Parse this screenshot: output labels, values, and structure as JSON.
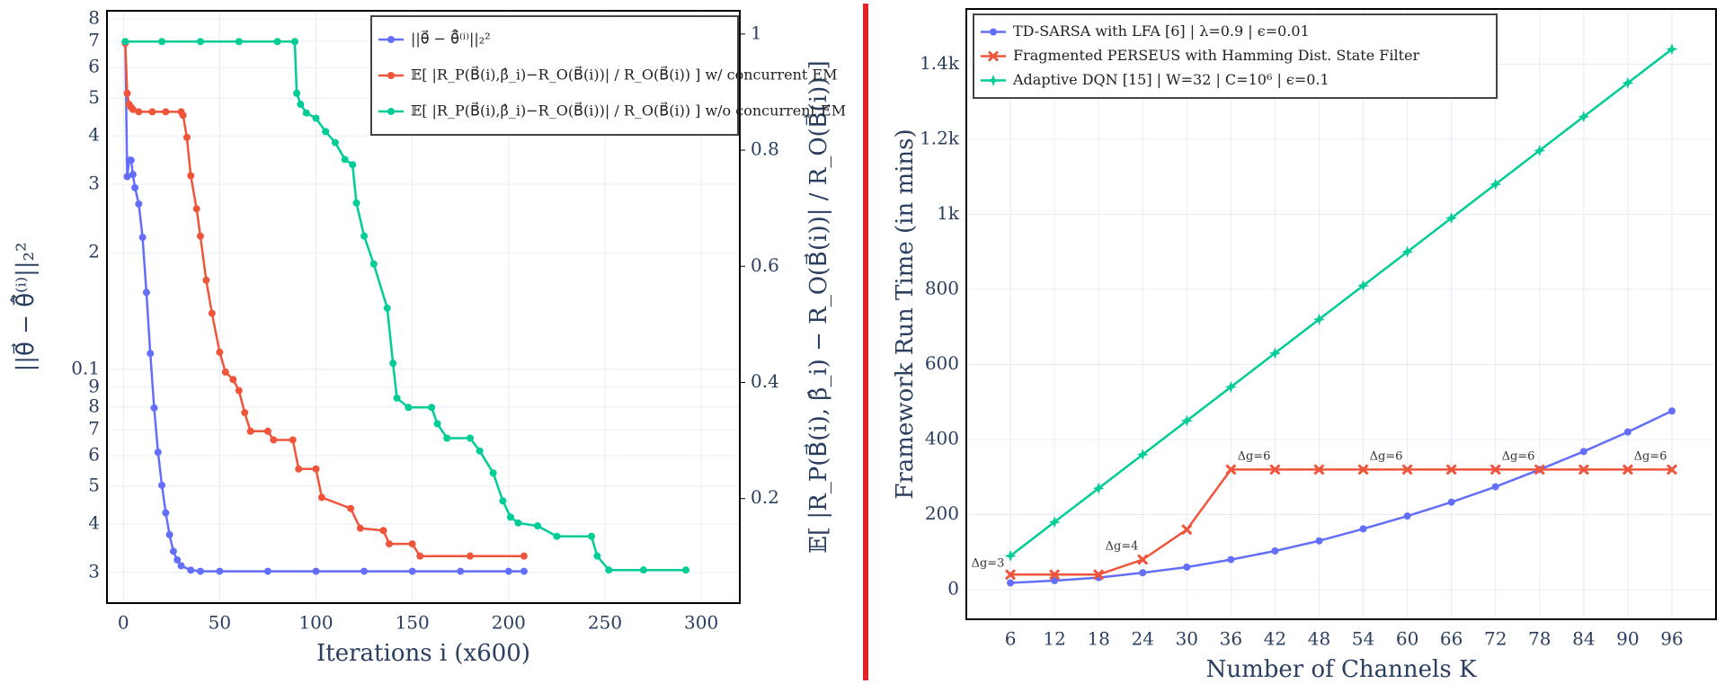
{
  "chart_data": [
    {
      "type": "line",
      "xlabel": "Iterations i (x600)",
      "ylabel": "||θ⃗ − θ̂⃗⁽ⁱ⁾||₂²",
      "y2label": "𝔼[ |R_P(B⃗(i), β̂_i) − R_O(B⃗(i))| / R_O(B⃗(i)) ]",
      "xlim": [
        -8.5,
        320
      ],
      "xticks": [
        0,
        50,
        100,
        150,
        200,
        250,
        300
      ],
      "ylog": true,
      "ylim": [
        0.025,
        0.84
      ],
      "yticks": [
        {
          "value": 0.03,
          "label": "3"
        },
        {
          "value": 0.04,
          "label": "4"
        },
        {
          "value": 0.05,
          "label": "5"
        },
        {
          "value": 0.06,
          "label": "6"
        },
        {
          "value": 0.07,
          "label": "7"
        },
        {
          "value": 0.08,
          "label": "8"
        },
        {
          "value": 0.09,
          "label": "9"
        },
        0.1,
        {
          "value": 0.2,
          "label": "2"
        },
        {
          "value": 0.3,
          "label": "3"
        },
        {
          "value": 0.4,
          "label": "4"
        },
        {
          "value": 0.5,
          "label": "5"
        },
        {
          "value": 0.6,
          "label": "6"
        },
        {
          "value": 0.7,
          "label": "7"
        },
        {
          "value": 0.8,
          "label": "8"
        }
      ],
      "y2lim": [
        0.02,
        1.04
      ],
      "y2ticks": [
        0.2,
        0.4,
        0.6,
        0.8,
        1
      ],
      "grid": true,
      "legend": "upper right",
      "series": [
        {
          "name": "||θ⃗ − θ̂⃗⁽ⁱ⁾||₂²",
          "color": "#636efa",
          "marker": "circle",
          "x": [
            1,
            2,
            3,
            4,
            5,
            6,
            8,
            10,
            12,
            14,
            16,
            18,
            20,
            22,
            24,
            26,
            28,
            30,
            35,
            40,
            50,
            75,
            100,
            125,
            150,
            175,
            200,
            208
          ],
          "values": [
            0.698,
            0.314,
            0.346,
            0.346,
            0.318,
            0.294,
            0.267,
            0.219,
            0.158,
            0.11,
            0.0796,
            0.0612,
            0.0503,
            0.0427,
            0.0375,
            0.034,
            0.0323,
            0.0312,
            0.0304,
            0.0302,
            0.0302,
            0.0302,
            0.0302,
            0.0302,
            0.0302,
            0.0302,
            0.0302,
            0.0302
          ]
        },
        {
          "name": "𝔼[ |R_P(B⃗(i),β̂_i)−R_O(B⃗(i))| / R_O(B⃗(i)) ] w/ concurrent EM",
          "color": "#ef553b",
          "marker": "circle",
          "axis": "y2",
          "x": [
            1,
            2,
            3,
            4,
            5,
            8,
            15,
            22,
            30,
            31,
            33,
            35,
            38,
            40,
            43,
            46,
            50,
            53,
            57,
            60,
            63,
            66,
            75,
            78,
            88,
            91,
            100,
            103,
            118,
            123,
            135,
            138,
            150,
            154,
            180,
            208
          ],
          "values": [
            0.984,
            0.898,
            0.879,
            0.874,
            0.87,
            0.866,
            0.866,
            0.866,
            0.866,
            0.86,
            0.822,
            0.756,
            0.699,
            0.652,
            0.576,
            0.519,
            0.452,
            0.418,
            0.405,
            0.386,
            0.348,
            0.316,
            0.316,
            0.301,
            0.301,
            0.251,
            0.251,
            0.202,
            0.183,
            0.149,
            0.145,
            0.122,
            0.122,
            0.101,
            0.101,
            0.101
          ]
        },
        {
          "name": "𝔼[ |R_P(B⃗(i),β̂_i)−R_O(B⃗(i))| / R_O(B⃗(i)) ] w/o concurrent EM",
          "color": "#00cc96",
          "marker": "circle",
          "axis": "y2",
          "x": [
            1,
            20,
            40,
            60,
            80,
            89,
            90,
            92,
            95,
            100,
            105,
            110,
            115,
            119,
            121,
            125,
            130,
            137,
            140,
            142,
            148,
            160,
            163,
            168,
            180,
            185,
            192,
            197,
            201,
            205,
            215,
            225,
            243,
            246,
            252,
            270,
            292
          ],
          "values": [
            0.987,
            0.987,
            0.987,
            0.987,
            0.987,
            0.987,
            0.898,
            0.879,
            0.864,
            0.855,
            0.832,
            0.813,
            0.784,
            0.775,
            0.709,
            0.652,
            0.604,
            0.528,
            0.433,
            0.373,
            0.357,
            0.357,
            0.329,
            0.304,
            0.304,
            0.282,
            0.244,
            0.196,
            0.168,
            0.158,
            0.153,
            0.135,
            0.135,
            0.101,
            0.077,
            0.077,
            0.077
          ]
        }
      ]
    },
    {
      "type": "line",
      "xlabel": "Number of Channels K",
      "ylabel": "Framework Run Time (in mins)",
      "x": [
        6,
        12,
        18,
        24,
        30,
        36,
        42,
        48,
        54,
        60,
        66,
        72,
        78,
        84,
        90,
        96
      ],
      "xlim": [
        0,
        102
      ],
      "xticks": [
        6,
        12,
        18,
        24,
        30,
        36,
        42,
        48,
        54,
        60,
        66,
        72,
        78,
        84,
        90,
        96
      ],
      "ylim": [
        -79,
        1547
      ],
      "yticks": [
        0,
        200,
        400,
        600,
        800,
        {
          "value": 1000,
          "label": "1k"
        },
        {
          "value": 1200,
          "label": "1.2k"
        },
        {
          "value": 1400,
          "label": "1.4k"
        }
      ],
      "grid": true,
      "legend": "upper left",
      "series": [
        {
          "name": "TD-SARSA with LFA [6] | λ=0.9 | ϵ=0.01",
          "color": "#636efa",
          "marker": "circle",
          "values": [
            18,
            24,
            32,
            45,
            60,
            80,
            103,
            130,
            162,
            196,
            233,
            274,
            320,
            368,
            420,
            476
          ]
        },
        {
          "name": "Fragmented PERSEUS with Hamming Dist. State Filter",
          "color": "#ef553b",
          "marker": "x",
          "values": [
            40,
            40,
            40,
            80,
            160,
            320,
            320,
            320,
            320,
            320,
            320,
            320,
            320,
            320,
            320,
            320
          ]
        },
        {
          "name": "Adaptive DQN [15] | W=32 | C=10⁶ | ϵ=0.1",
          "color": "#00cc96",
          "marker": "star",
          "values": [
            90,
            180,
            270,
            360,
            450,
            540,
            630,
            720,
            810,
            900,
            990,
            1080,
            1170,
            1260,
            1350,
            1440
          ]
        }
      ],
      "annotations": [
        "Δg=3",
        "Δg=4",
        "Δg=6",
        "Δg=6",
        "Δg=6",
        "Δg=6"
      ]
    }
  ]
}
